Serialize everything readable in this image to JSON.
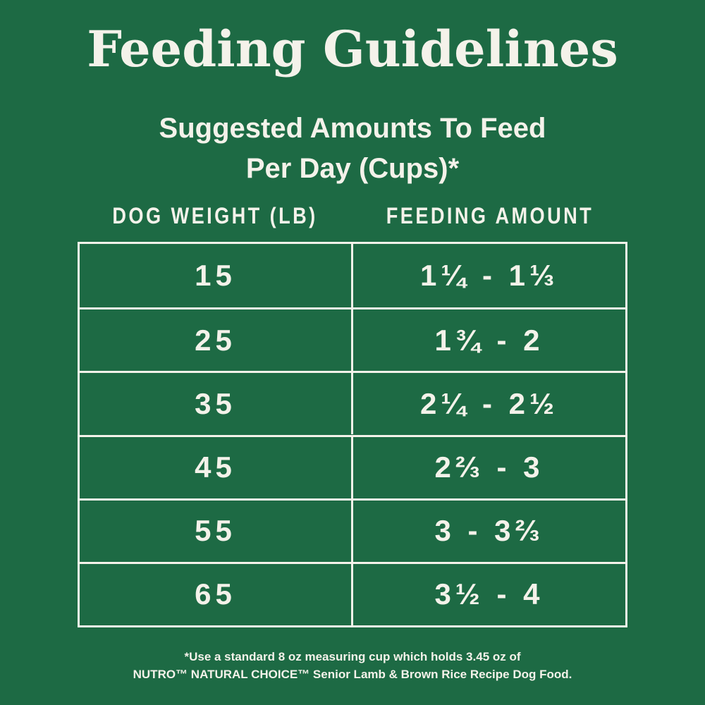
{
  "header": {
    "title": "Feeding Guidelines",
    "subtitle_lines": [
      "Suggested Amounts To Feed",
      "Per Day (Cups)*"
    ]
  },
  "table": {
    "columns": [
      "DOG WEIGHT (LB)",
      "FEEDING AMOUNT"
    ],
    "rows": [
      [
        15,
        "1¼ - 1⅓"
      ],
      [
        25,
        "1¾ - 2"
      ],
      [
        35,
        "2¼ - 2½"
      ],
      [
        45,
        "2⅔ - 3"
      ],
      [
        55,
        "3 - 3⅔"
      ],
      [
        65,
        "3½ - 4"
      ]
    ]
  },
  "footnote_lines": [
    "*Use a standard 8 oz measuring cup which holds 3.45 oz of",
    "NUTRO™ NATURAL CHOICE™ Senior Lamb & Brown Rice Recipe Dog Food."
  ]
}
